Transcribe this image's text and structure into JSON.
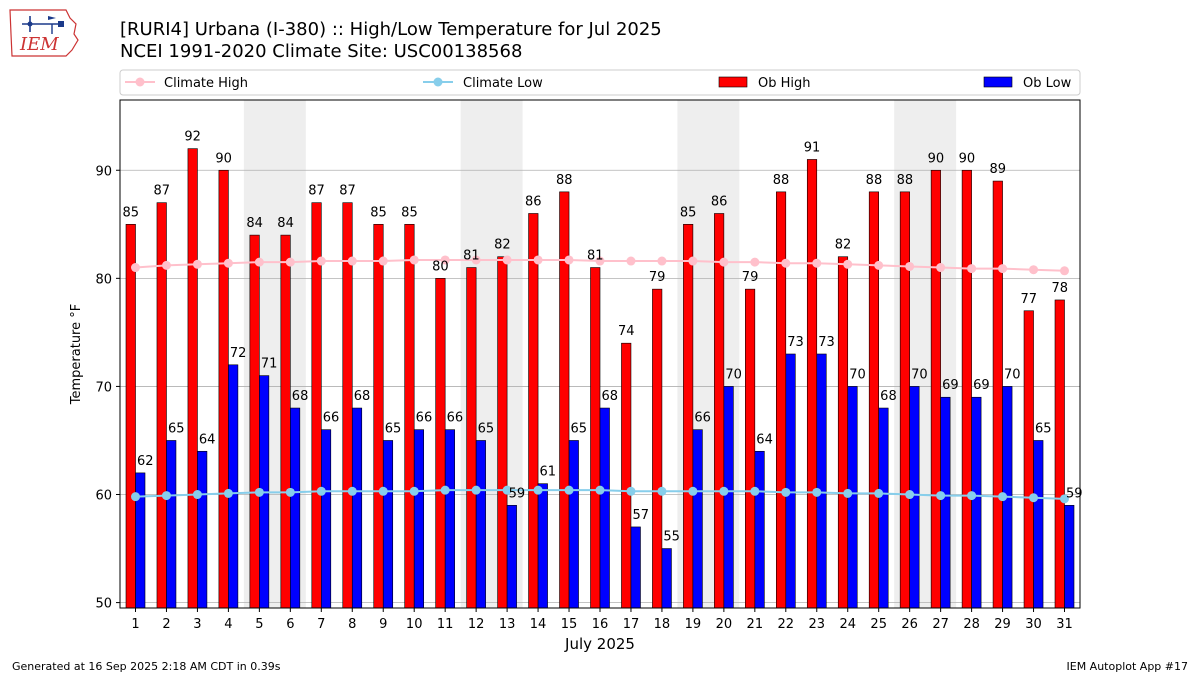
{
  "logo_text": "IEM",
  "footer": {
    "generated": "Generated at 16 Sep 2025 2:18 AM CDT in 0.39s",
    "app": "IEM Autoplot App #17"
  },
  "colors": {
    "ob_high": "#ff0000",
    "ob_low": "#0000ff",
    "climate_high": "#ffc0cb",
    "climate_low": "#87ceeb",
    "weekend_shade": "#eeeeee",
    "grid": "#b0b0b0"
  },
  "chart_data": {
    "type": "bar",
    "title": "[RURI4] Urbana (I-380) :: High/Low Temperature for Jul 2025",
    "subtitle": "NCEI 1991-2020 Climate Site: USC00138568",
    "xlabel": "July 2025",
    "ylabel": "Temperature °F",
    "ylim": [
      49.5,
      96.5
    ],
    "yticks": [
      50,
      60,
      70,
      80,
      90
    ],
    "grid": true,
    "legend_position": "top",
    "categories": [
      "1",
      "2",
      "3",
      "4",
      "5",
      "6",
      "7",
      "8",
      "9",
      "10",
      "11",
      "12",
      "13",
      "14",
      "15",
      "16",
      "17",
      "18",
      "19",
      "20",
      "21",
      "22",
      "23",
      "24",
      "25",
      "26",
      "27",
      "28",
      "29",
      "30",
      "31"
    ],
    "shaded_days": [
      [
        5,
        6
      ],
      [
        12,
        13
      ],
      [
        19,
        20
      ],
      [
        26,
        27
      ]
    ],
    "series": [
      {
        "name": "Climate High",
        "kind": "line",
        "values": [
          81.0,
          81.2,
          81.3,
          81.4,
          81.5,
          81.5,
          81.6,
          81.6,
          81.6,
          81.7,
          81.7,
          81.7,
          81.7,
          81.7,
          81.7,
          81.6,
          81.6,
          81.6,
          81.6,
          81.5,
          81.5,
          81.4,
          81.4,
          81.3,
          81.2,
          81.1,
          81.0,
          80.9,
          80.9,
          80.8,
          80.7
        ]
      },
      {
        "name": "Climate Low",
        "kind": "line",
        "values": [
          59.8,
          59.9,
          60.0,
          60.1,
          60.2,
          60.2,
          60.3,
          60.3,
          60.3,
          60.3,
          60.4,
          60.4,
          60.4,
          60.4,
          60.4,
          60.4,
          60.3,
          60.3,
          60.3,
          60.3,
          60.3,
          60.2,
          60.2,
          60.1,
          60.1,
          60.0,
          59.9,
          59.9,
          59.8,
          59.7,
          59.6
        ]
      },
      {
        "name": "Ob High",
        "kind": "bar",
        "values": [
          85,
          87,
          92,
          90,
          84,
          84,
          87,
          87,
          85,
          85,
          80,
          81,
          82,
          86,
          88,
          81,
          74,
          79,
          85,
          86,
          79,
          88,
          91,
          82,
          88,
          88,
          90,
          90,
          89,
          77,
          78
        ]
      },
      {
        "name": "Ob Low",
        "kind": "bar",
        "values": [
          62,
          65,
          64,
          72,
          71,
          68,
          66,
          68,
          65,
          66,
          66,
          65,
          59,
          61,
          65,
          68,
          57,
          55,
          66,
          70,
          64,
          73,
          73,
          70,
          68,
          70,
          69,
          69,
          70,
          65,
          59
        ]
      }
    ]
  }
}
